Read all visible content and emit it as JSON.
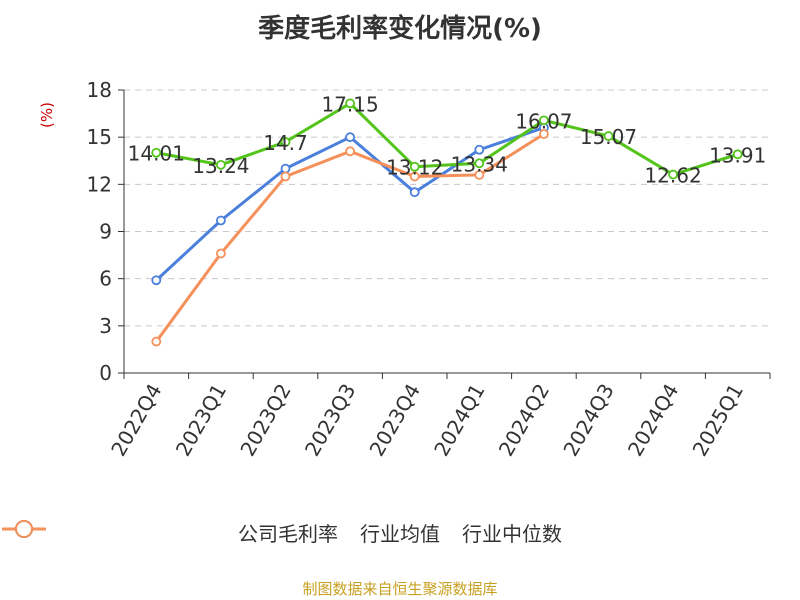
{
  "chart_data": {
    "type": "line",
    "title": "季度毛利率变化情况(%)",
    "ylabel": "(%)",
    "categories": [
      "2022Q4",
      "2023Q1",
      "2023Q2",
      "2023Q3",
      "2023Q4",
      "2024Q1",
      "2024Q2",
      "2024Q3",
      "2024Q4",
      "2025Q1"
    ],
    "yticks": [
      "0",
      "3",
      "6",
      "9",
      "12",
      "15",
      "18"
    ],
    "ylim": [
      0,
      18
    ],
    "grid": true,
    "legend_position": "bottom",
    "series": [
      {
        "name": "公司毛利率",
        "color": "#52c41a",
        "labeled": true,
        "values": [
          14.01,
          13.24,
          14.7,
          17.15,
          13.12,
          13.34,
          16.07,
          15.07,
          12.62,
          13.91
        ],
        "labels": [
          "14.01",
          "13.24",
          "14.7",
          "17.15",
          "13.12",
          "13.34",
          "16.07",
          "15.07",
          "12.62",
          "13.91"
        ]
      },
      {
        "name": "行业均值",
        "color": "#4a7fdc",
        "labeled": false,
        "values": [
          5.9,
          9.7,
          13.0,
          15.0,
          11.5,
          14.2,
          15.6,
          null,
          null,
          null
        ]
      },
      {
        "name": "行业中位数",
        "color": "#f5905a",
        "labeled": false,
        "values": [
          2.0,
          7.6,
          12.5,
          14.1,
          12.5,
          12.6,
          15.2,
          null,
          null,
          null
        ]
      }
    ]
  },
  "source_text": "制图数据来自恒生聚源数据库"
}
